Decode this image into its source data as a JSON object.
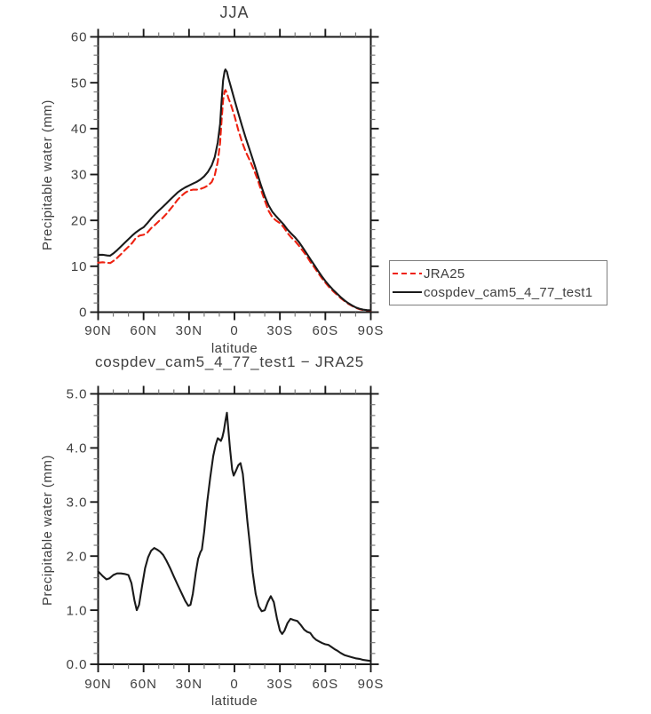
{
  "figure": {
    "background": "#ffffff",
    "text_color": "#3f3f3f",
    "axis_color": "#1a1a1a",
    "minor_tick_color": "#7a7a7a"
  },
  "top_panel": {
    "title": "JJA",
    "y_axis": {
      "label": "Precipitable water (mm)",
      "tick_labels": [
        "0",
        "10",
        "20",
        "30",
        "40",
        "50",
        "60"
      ],
      "min": 0,
      "max": 60,
      "major_step": 10,
      "minor_step": 2
    },
    "x_axis": {
      "label": "latitude",
      "tick_labels": [
        "90N",
        "60N",
        "30N",
        "0",
        "30S",
        "60S",
        "90S"
      ],
      "major_step_deg": 30,
      "minor_step_deg": 10
    },
    "legend": {
      "items": [
        {
          "label": "JRA25",
          "color": "#ee2211",
          "line_style": "dashed"
        },
        {
          "label": "cospdev_cam5_4_77_test1",
          "color": "#1a1a1a",
          "line_style": "solid"
        }
      ]
    }
  },
  "bottom_panel": {
    "title": "cospdev_cam5_4_77_test1 − JRA25",
    "y_axis": {
      "label": "Precipitable water (mm)",
      "tick_labels": [
        "0.0",
        "1.0",
        "2.0",
        "3.0",
        "4.0",
        "5.0"
      ],
      "min": 0,
      "max": 5,
      "major_step": 1,
      "minor_step": 0.2
    },
    "x_axis": {
      "label": "latitude",
      "tick_labels": [
        "90N",
        "60N",
        "30N",
        "0",
        "30S",
        "60S",
        "90S"
      ],
      "major_step_deg": 30,
      "minor_step_deg": 10
    }
  },
  "chart_data": [
    {
      "type": "line",
      "title": "JJA",
      "xlabel": "latitude",
      "ylabel": "Precipitable water (mm)",
      "ylim": [
        0,
        60
      ],
      "x_convention": "degrees latitude, positive = North",
      "grid": false,
      "legend_position": "outside-right",
      "series": [
        {
          "name": "JRA25",
          "color": "#ee2211",
          "line_style": "dashed",
          "lat": [
            90,
            87,
            84,
            82,
            80,
            77.5,
            75,
            72.5,
            70,
            67.5,
            65,
            62.5,
            60,
            57.5,
            55,
            52.5,
            50,
            47.5,
            45,
            42.5,
            40,
            37.5,
            35,
            32.5,
            30,
            27.5,
            25,
            22.5,
            20,
            17.5,
            15,
            13,
            11,
            9.5,
            8.5,
            7.5,
            6.5,
            6,
            5,
            4,
            2.5,
            0,
            -2.5,
            -5,
            -7.5,
            -10,
            -12.5,
            -15,
            -17.5,
            -20,
            -22.5,
            -25,
            -27.5,
            -30,
            -32.5,
            -35,
            -37.5,
            -40,
            -42.5,
            -45,
            -47.5,
            -50,
            -52.5,
            -55,
            -57.5,
            -60,
            -62.5,
            -65,
            -67.5,
            -70,
            -72.5,
            -75,
            -77.5,
            -80,
            -82.5,
            -85,
            -87.5,
            -90
          ],
          "values": [
            10.78,
            10.87,
            10.76,
            10.71,
            11.15,
            11.8,
            12.6,
            13.45,
            14.25,
            15.1,
            16.2,
            16.7,
            16.85,
            17.35,
            18.3,
            19.0,
            19.8,
            20.5,
            21.4,
            22.4,
            23.4,
            24.5,
            25.35,
            26.05,
            26.5,
            26.7,
            26.7,
            26.85,
            27.15,
            27.6,
            28.35,
            29.85,
            32.8,
            36.85,
            41.8,
            46.2,
            48.1,
            48.4,
            47.75,
            46.6,
            45.4,
            42.8,
            39.7,
            37.1,
            34.9,
            33.15,
            31.3,
            29.15,
            26.7,
            24.3,
            22.1,
            20.7,
            19.95,
            19.4,
            18.5,
            17.25,
            16.25,
            15.5,
            14.5,
            13.4,
            12.3,
            11.0,
            9.9,
            8.65,
            7.5,
            6.45,
            5.45,
            4.6,
            3.85,
            3.1,
            2.45,
            1.85,
            1.4,
            0.95,
            0.65,
            0.47,
            0.38,
            0.34
          ]
        },
        {
          "name": "cospdev_cam5_4_77_test1",
          "color": "#1a1a1a",
          "line_style": "solid",
          "lat": [
            90,
            87,
            84,
            82,
            80,
            77.5,
            75,
            72.5,
            70,
            67.5,
            65,
            62.5,
            60,
            57.5,
            55,
            52.5,
            50,
            47.5,
            45,
            42.5,
            40,
            37.5,
            35,
            32.5,
            30,
            27.5,
            25,
            22.5,
            20,
            17.5,
            15,
            13,
            11,
            9.5,
            8.5,
            7.5,
            6.5,
            6,
            5,
            4,
            2.5,
            0,
            -2.5,
            -5,
            -7.5,
            -10,
            -12.5,
            -15,
            -17.5,
            -20,
            -22.5,
            -25,
            -27.5,
            -30,
            -32.5,
            -35,
            -37.5,
            -40,
            -42.5,
            -45,
            -47.5,
            -50,
            -52.5,
            -55,
            -57.5,
            -60,
            -62.5,
            -65,
            -67.5,
            -70,
            -72.5,
            -75,
            -77.5,
            -80,
            -82.5,
            -85,
            -87.5,
            -90
          ],
          "values": [
            12.5,
            12.5,
            12.35,
            12.3,
            12.8,
            13.5,
            14.3,
            15.1,
            15.9,
            16.7,
            17.4,
            18.0,
            18.5,
            19.4,
            20.4,
            21.3,
            22.1,
            22.9,
            23.7,
            24.5,
            25.3,
            26.1,
            26.7,
            27.2,
            27.6,
            28.0,
            28.4,
            28.9,
            29.6,
            30.6,
            32.0,
            33.8,
            37.0,
            41.0,
            46.0,
            50.5,
            52.5,
            52.9,
            52.4,
            51.0,
            49.3,
            46.3,
            43.4,
            40.6,
            37.9,
            35.4,
            32.9,
            30.3,
            27.7,
            25.3,
            23.3,
            21.9,
            20.9,
            20.0,
            19.1,
            18.0,
            17.1,
            16.3,
            15.3,
            14.1,
            12.9,
            11.6,
            10.4,
            9.1,
            7.9,
            6.8,
            5.8,
            4.9,
            4.1,
            3.3,
            2.6,
            2.0,
            1.5,
            1.05,
            0.75,
            0.55,
            0.45,
            0.4
          ]
        }
      ]
    },
    {
      "type": "line",
      "title": "cospdev_cam5_4_77_test1 − JRA25",
      "xlabel": "latitude",
      "ylabel": "Precipitable water (mm)",
      "ylim": [
        0,
        5
      ],
      "x_convention": "degrees latitude, positive = North",
      "grid": false,
      "series": [
        {
          "name": "cospdev_cam5_4_77_test1 minus JRA25",
          "color": "#1a1a1a",
          "line_style": "solid",
          "lat": [
            90,
            87,
            84.5,
            82.5,
            80,
            77.5,
            75,
            72.5,
            70,
            68,
            66,
            64.5,
            63,
            61,
            59,
            57,
            55,
            53,
            51,
            49,
            47,
            45,
            42.5,
            40,
            37.5,
            35,
            32.5,
            30.5,
            29,
            27.5,
            25.5,
            24,
            22.5,
            21.5,
            20,
            18,
            16,
            14,
            12.5,
            11,
            10,
            9,
            8,
            7,
            6,
            5,
            4.2,
            3,
            1.5,
            0.5,
            -1,
            -2.5,
            -4,
            -5.5,
            -7,
            -8.5,
            -10,
            -12,
            -14,
            -16,
            -18,
            -20,
            -22,
            -24,
            -26,
            -28,
            -30,
            -31.5,
            -33,
            -35,
            -37,
            -39,
            -41.5,
            -44,
            -46,
            -48,
            -50,
            -52,
            -54,
            -56,
            -58,
            -60,
            -62,
            -64,
            -66,
            -68,
            -70,
            -72.5,
            -75,
            -77.5,
            -80,
            -82.5,
            -85,
            -87.5,
            -90
          ],
          "values": [
            1.72,
            1.63,
            1.57,
            1.59,
            1.65,
            1.68,
            1.68,
            1.67,
            1.65,
            1.5,
            1.18,
            1.0,
            1.1,
            1.45,
            1.78,
            1.98,
            2.1,
            2.15,
            2.12,
            2.08,
            2.02,
            1.92,
            1.78,
            1.62,
            1.47,
            1.32,
            1.17,
            1.08,
            1.1,
            1.3,
            1.7,
            1.95,
            2.07,
            2.12,
            2.45,
            3.0,
            3.45,
            3.85,
            4.05,
            4.18,
            4.16,
            4.13,
            4.2,
            4.32,
            4.5,
            4.65,
            4.4,
            4.0,
            3.6,
            3.49,
            3.58,
            3.68,
            3.72,
            3.52,
            3.1,
            2.65,
            2.25,
            1.7,
            1.3,
            1.07,
            0.98,
            1.0,
            1.15,
            1.26,
            1.15,
            0.85,
            0.62,
            0.56,
            0.62,
            0.76,
            0.84,
            0.82,
            0.8,
            0.72,
            0.64,
            0.6,
            0.58,
            0.5,
            0.45,
            0.42,
            0.39,
            0.37,
            0.36,
            0.32,
            0.28,
            0.25,
            0.21,
            0.17,
            0.15,
            0.13,
            0.11,
            0.1,
            0.08,
            0.07,
            0.06
          ]
        }
      ]
    }
  ]
}
